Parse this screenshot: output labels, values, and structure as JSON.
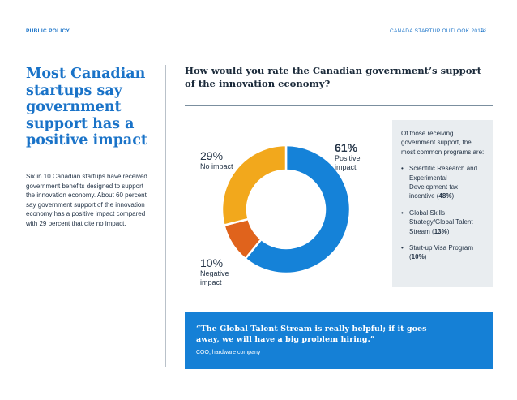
{
  "header": {
    "section": "PUBLIC POLICY",
    "publication": "CANADA STARTUP OUTLOOK 2019",
    "page_number": "13"
  },
  "left": {
    "headline": "Most Canadian startups say government support has a positive impact",
    "body": "Six in 10 Canadian startups have received government benefits designed to support the innovation economy. About 60 percent say government support of the innovation economy has a positive impact compared with 29 percent that cite no impact."
  },
  "question": "How would you rate the Canadian government’s support of the innovation economy?",
  "chart_data": {
    "type": "pie",
    "variant": "donut",
    "title": "How would you rate the Canadian government’s support of the innovation economy?",
    "categories": [
      "Positive impact",
      "Negative impact",
      "No impact"
    ],
    "values": [
      61,
      10,
      29
    ],
    "unit": "%",
    "colors": [
      "#1582d8",
      "#e0631c",
      "#f2a81c"
    ],
    "labels": {
      "positive_pct": "61%",
      "positive_name": "Positive impact",
      "none_pct": "29%",
      "none_name": "No impact",
      "negative_pct": "10%",
      "negative_name": "Negative impact"
    }
  },
  "sidebox": {
    "intro": "Of those receiving government support, the most common programs are:",
    "items": [
      {
        "text": "Scientific Research and Experimental Development tax incentive",
        "pct": "48%"
      },
      {
        "text": "Global Skills Strategy/Global Talent Stream",
        "pct": "13%"
      },
      {
        "text": "Start-up Visa Program",
        "pct": "10%"
      }
    ]
  },
  "quote": {
    "text": "“The Global Talent Stream is really helpful; if it goes away, we will have a big problem hiring.”",
    "attribution": "COO, hardware company"
  }
}
